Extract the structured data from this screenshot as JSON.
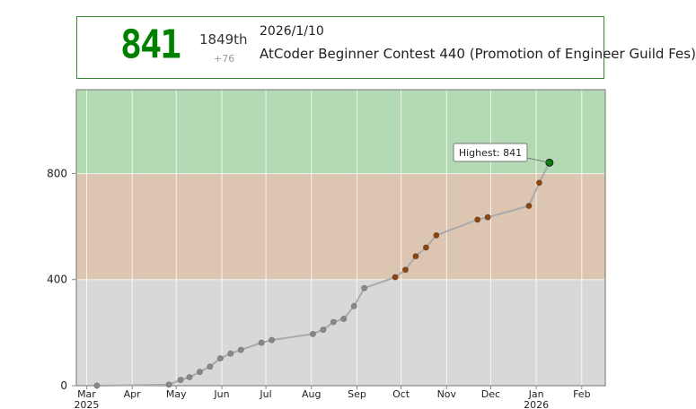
{
  "status": {
    "rating": "841",
    "rank": "1849th",
    "diff": "+76",
    "date": "2026/1/10",
    "contest": "AtCoder Beginner Contest 440 (Promotion of Engineer Guild Fes)"
  },
  "colors": {
    "green_band": "#b3dab3",
    "brown_band": "#dcc6b1",
    "gray_band": "#d8d8d8",
    "gray_point": "#888888",
    "brown_point": "#8b4513",
    "green_point": "#008000",
    "line": "#aaaaaa",
    "rating_text": "#008000"
  },
  "chart_data": {
    "type": "line",
    "title": "",
    "xlabel": "",
    "ylabel": "",
    "ylim": [
      0,
      1116
    ],
    "xlim": [
      "2025-02-22",
      "2026-02-17"
    ],
    "x_ticks": [
      {
        "date": "2025-03-01",
        "label": "Mar",
        "sublabel": "2025"
      },
      {
        "date": "2025-04-01",
        "label": "Apr",
        "sublabel": ""
      },
      {
        "date": "2025-05-01",
        "label": "May",
        "sublabel": ""
      },
      {
        "date": "2025-06-01",
        "label": "Jun",
        "sublabel": ""
      },
      {
        "date": "2025-07-01",
        "label": "Jul",
        "sublabel": ""
      },
      {
        "date": "2025-08-01",
        "label": "Aug",
        "sublabel": ""
      },
      {
        "date": "2025-09-01",
        "label": "Sep",
        "sublabel": ""
      },
      {
        "date": "2025-10-01",
        "label": "Oct",
        "sublabel": ""
      },
      {
        "date": "2025-11-01",
        "label": "Nov",
        "sublabel": ""
      },
      {
        "date": "2025-12-01",
        "label": "Dec",
        "sublabel": ""
      },
      {
        "date": "2026-01-01",
        "label": "Jan",
        "sublabel": "2026"
      },
      {
        "date": "2026-02-01",
        "label": "Feb",
        "sublabel": ""
      }
    ],
    "y_ticks": [
      0,
      400,
      800
    ],
    "bands": [
      {
        "from": 0,
        "to": 400,
        "color": "#d8d8d8"
      },
      {
        "from": 400,
        "to": 800,
        "color": "#dcc6b1"
      },
      {
        "from": 800,
        "to": 1116,
        "color": "#b3dab3"
      }
    ],
    "series": [
      {
        "points": [
          {
            "x": "2025-03-08",
            "y": 0
          },
          {
            "x": "2025-04-26",
            "y": 4
          },
          {
            "x": "2025-05-04",
            "y": 22
          },
          {
            "x": "2025-05-10",
            "y": 32
          },
          {
            "x": "2025-05-17",
            "y": 52
          },
          {
            "x": "2025-05-24",
            "y": 72
          },
          {
            "x": "2025-05-31",
            "y": 103
          },
          {
            "x": "2025-06-07",
            "y": 121
          },
          {
            "x": "2025-06-14",
            "y": 135
          },
          {
            "x": "2025-06-28",
            "y": 162
          },
          {
            "x": "2025-07-05",
            "y": 172
          },
          {
            "x": "2025-08-02",
            "y": 195
          },
          {
            "x": "2025-08-09",
            "y": 211
          },
          {
            "x": "2025-08-16",
            "y": 240
          },
          {
            "x": "2025-08-23",
            "y": 252
          },
          {
            "x": "2025-08-30",
            "y": 300
          },
          {
            "x": "2025-09-06",
            "y": 368
          },
          {
            "x": "2025-09-27",
            "y": 409
          },
          {
            "x": "2025-10-04",
            "y": 437
          },
          {
            "x": "2025-10-11",
            "y": 488
          },
          {
            "x": "2025-10-18",
            "y": 521
          },
          {
            "x": "2025-10-25",
            "y": 567
          },
          {
            "x": "2025-11-22",
            "y": 626
          },
          {
            "x": "2025-11-29",
            "y": 635
          },
          {
            "x": "2025-12-27",
            "y": 678
          },
          {
            "x": "2026-01-03",
            "y": 765
          },
          {
            "x": "2026-01-10",
            "y": 841
          }
        ]
      }
    ],
    "annotation": {
      "text": "Highest: 841",
      "x": "2026-01-10",
      "y": 841
    }
  }
}
